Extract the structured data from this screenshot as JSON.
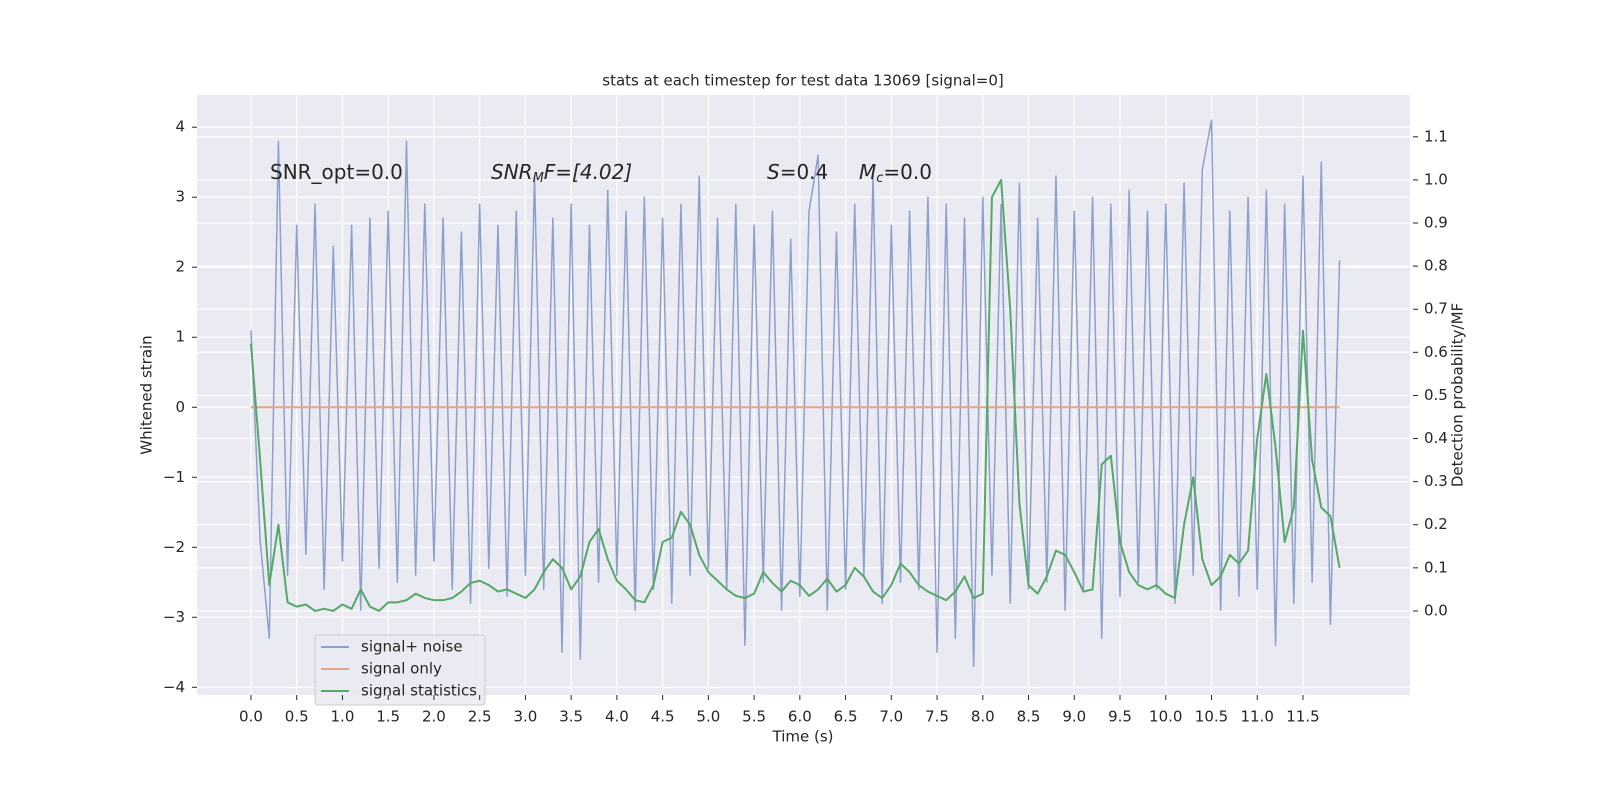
{
  "chart_data": {
    "type": "line",
    "title": "stats at each timestep for test data 13069 [signal=0]",
    "xlabel": "Time (s)",
    "ylabel": "Whitened strain",
    "y2label": "Detection probability/MF",
    "annotations": [
      [
        "SNR_opt=0.0"
      ],
      [
        "SNR",
        "M",
        "F=[4.02]"
      ],
      [
        "S",
        "=0.4"
      ],
      [
        "M",
        "c",
        "=0.0"
      ]
    ],
    "xlim": [
      -0.59,
      12.67
    ],
    "ylim": [
      -4.11,
      4.46
    ],
    "y2lim": [
      -0.195,
      1.197
    ],
    "xticks": [
      {
        "value": 0,
        "label": "0.0"
      },
      0.5,
      {
        "value": 1,
        "label": "1.0"
      },
      1.5,
      {
        "value": 2,
        "label": "2.0"
      },
      2.5,
      {
        "value": 3,
        "label": "3.0"
      },
      3.5,
      {
        "value": 4,
        "label": "4.0"
      },
      4.5,
      {
        "value": 5,
        "label": "5.0"
      },
      5.5,
      {
        "value": 6,
        "label": "6.0"
      },
      6.5,
      {
        "value": 7,
        "label": "7.0"
      },
      7.5,
      {
        "value": 8,
        "label": "8.0"
      },
      8.5,
      {
        "value": 9,
        "label": "9.0"
      },
      9.5,
      {
        "value": 10,
        "label": "10.0"
      },
      10.5,
      {
        "value": 11,
        "label": "11.0"
      },
      11.5
    ],
    "yticks": [
      {
        "value": -4,
        "label": "−4"
      },
      {
        "value": -3,
        "label": "−3"
      },
      {
        "value": -2,
        "label": "−2"
      },
      {
        "value": -1,
        "label": "−1"
      },
      0,
      1,
      2,
      3,
      4
    ],
    "y2ticks": [
      {
        "value": 0,
        "label": "0.0"
      },
      0.1,
      0.2,
      0.3,
      0.4,
      0.5,
      0.6,
      0.7,
      0.8,
      0.9,
      {
        "value": 1,
        "label": "1.0"
      },
      1.1
    ],
    "grid": true,
    "legend": "lower left",
    "x": [
      0,
      0.1,
      0.2,
      0.3,
      0.4,
      0.5,
      0.6,
      0.7,
      0.8,
      0.9,
      1,
      1.1,
      1.2,
      1.3,
      1.4,
      1.5,
      1.6,
      1.7,
      1.8,
      1.9,
      2,
      2.1,
      2.2,
      2.3,
      2.4,
      2.5,
      2.6,
      2.7,
      2.8,
      2.9,
      3,
      3.1,
      3.2,
      3.3,
      3.4,
      3.5,
      3.6,
      3.7,
      3.8,
      3.9,
      4,
      4.1,
      4.2,
      4.3,
      4.4,
      4.5,
      4.6,
      4.7,
      4.8,
      4.9,
      5,
      5.1,
      5.2,
      5.3,
      5.4,
      5.5,
      5.6,
      5.7,
      5.8,
      5.9,
      6,
      6.1,
      6.2,
      6.3,
      6.4,
      6.5,
      6.6,
      6.7,
      6.8,
      6.9,
      7,
      7.1,
      7.2,
      7.3,
      7.4,
      7.5,
      7.6,
      7.7,
      7.8,
      7.9,
      8,
      8.1,
      8.2,
      8.3,
      8.4,
      8.5,
      8.6,
      8.7,
      8.8,
      8.9,
      9,
      9.1,
      9.2,
      9.3,
      9.4,
      9.5,
      9.6,
      9.7,
      9.8,
      9.9,
      10,
      10.1,
      10.2,
      10.3,
      10.4,
      10.5,
      10.6,
      10.7,
      10.8,
      10.9,
      11,
      11.1,
      11.2,
      11.3,
      11.4,
      11.5,
      11.6,
      11.7,
      11.8,
      11.9
    ],
    "series": [
      {
        "name": "signal+ noise",
        "color": "#8da0cb",
        "values": [
          1.1,
          -1.9,
          -3.3,
          3.8,
          -2.4,
          2.6,
          -2.1,
          2.9,
          -2.6,
          2.3,
          -2.2,
          2.6,
          -2.9,
          2.7,
          -2.3,
          2.8,
          -2.5,
          3.8,
          -2.4,
          2.9,
          -2.2,
          2.7,
          -2.6,
          2.5,
          -2.8,
          2.9,
          -2.3,
          2.6,
          -2.7,
          2.8,
          -2.4,
          3.3,
          -2.6,
          2.7,
          -3.5,
          2.9,
          -3.6,
          2.6,
          -2.5,
          3.1,
          -2.4,
          2.8,
          -2.9,
          3.0,
          -2.6,
          2.7,
          -2.8,
          2.9,
          -2.4,
          3.3,
          -2.3,
          2.7,
          -2.6,
          2.9,
          -3.4,
          2.6,
          -2.5,
          2.8,
          -2.9,
          2.4,
          -2.7,
          2.8,
          3.6,
          -2.9,
          2.5,
          -2.6,
          2.9,
          -2.4,
          3.3,
          -2.8,
          2.6,
          -2.5,
          2.8,
          -2.6,
          3.0,
          -3.5,
          2.9,
          -3.3,
          2.7,
          -3.7,
          3.0,
          -2.4,
          2.9,
          -2.8,
          3.2,
          -2.6,
          2.7,
          -2.5,
          3.3,
          -2.9,
          2.8,
          -2.6,
          3.0,
          -3.3,
          2.9,
          -2.7,
          3.1,
          -2.5,
          2.8,
          -2.6,
          2.9,
          -2.8,
          3.2,
          -2.4,
          3.4,
          4.1,
          -2.9,
          2.8,
          -2.7,
          3.0,
          -2.6,
          3.1,
          -3.4,
          2.9,
          -2.8,
          3.3,
          -2.5,
          3.5,
          -3.1,
          2.1
        ]
      },
      {
        "name": "signal only",
        "color": "#e5a58a",
        "values": [
          0,
          0,
          0,
          0,
          0,
          0,
          0,
          0,
          0,
          0,
          0,
          0,
          0,
          0,
          0,
          0,
          0,
          0,
          0,
          0,
          0,
          0,
          0,
          0,
          0,
          0,
          0,
          0,
          0,
          0,
          0,
          0,
          0,
          0,
          0,
          0,
          0,
          0,
          0,
          0,
          0,
          0,
          0,
          0,
          0,
          0,
          0,
          0,
          0,
          0,
          0,
          0,
          0,
          0,
          0,
          0,
          0,
          0,
          0,
          0,
          0,
          0,
          0,
          0,
          0,
          0,
          0,
          0,
          0,
          0,
          0,
          0,
          0,
          0,
          0,
          0,
          0,
          0,
          0,
          0,
          0,
          0,
          0,
          0,
          0,
          0,
          0,
          0,
          0,
          0,
          0,
          0,
          0,
          0,
          0,
          0,
          0,
          0,
          0,
          0,
          0,
          0,
          0,
          0,
          0,
          0,
          0,
          0,
          0,
          0,
          0,
          0,
          0,
          0,
          0,
          0,
          0,
          0,
          0,
          0
        ]
      },
      {
        "name": "signal statistics",
        "color": "#55a868",
        "axis": "y2",
        "values": [
          0.62,
          0.35,
          0.06,
          0.2,
          0.02,
          0.01,
          0.015,
          0.0,
          0.005,
          0.0,
          0.015,
          0.005,
          0.05,
          0.01,
          0.0,
          0.02,
          0.02,
          0.025,
          0.04,
          0.03,
          0.025,
          0.025,
          0.03,
          0.045,
          0.065,
          0.07,
          0.06,
          0.045,
          0.05,
          0.04,
          0.03,
          0.05,
          0.09,
          0.12,
          0.1,
          0.05,
          0.08,
          0.16,
          0.19,
          0.12,
          0.07,
          0.05,
          0.025,
          0.02,
          0.06,
          0.16,
          0.17,
          0.23,
          0.2,
          0.13,
          0.09,
          0.07,
          0.05,
          0.035,
          0.03,
          0.04,
          0.09,
          0.065,
          0.045,
          0.07,
          0.06,
          0.035,
          0.05,
          0.075,
          0.045,
          0.06,
          0.1,
          0.08,
          0.045,
          0.03,
          0.06,
          0.11,
          0.09,
          0.06,
          0.045,
          0.035,
          0.025,
          0.045,
          0.08,
          0.03,
          0.04,
          0.96,
          1.0,
          0.7,
          0.25,
          0.06,
          0.04,
          0.08,
          0.14,
          0.13,
          0.09,
          0.045,
          0.05,
          0.34,
          0.36,
          0.16,
          0.09,
          0.06,
          0.05,
          0.06,
          0.04,
          0.03,
          0.2,
          0.31,
          0.12,
          0.06,
          0.08,
          0.13,
          0.11,
          0.14,
          0.4,
          0.55,
          0.38,
          0.16,
          0.24,
          0.65,
          0.35,
          0.24,
          0.22,
          0.1
        ]
      }
    ]
  }
}
